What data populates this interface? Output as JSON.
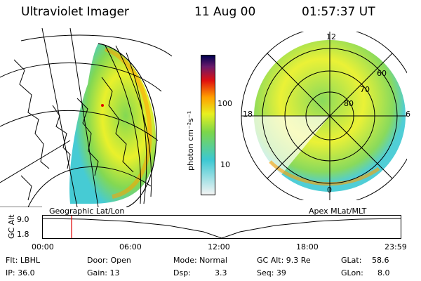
{
  "header": {
    "instrument": "Ultraviolet Imager",
    "date": "11 Aug 00",
    "time": "01:57:37 UT"
  },
  "colorbar": {
    "unit_label": "photon cm⁻²s⁻¹",
    "ticks": [
      "100",
      "10"
    ]
  },
  "geo_panel": {
    "caption": "Geographic Lat/Lon"
  },
  "polar_panel": {
    "caption": "Apex MLat/MLT",
    "mlt_labels": [
      "12",
      "18",
      "6",
      "0"
    ],
    "lat_labels": [
      "60",
      "70",
      "80"
    ]
  },
  "altitude_strip": {
    "axis_label": "GC Alt",
    "y_ticks": [
      "9.0",
      "1.8"
    ],
    "x_ticks": [
      "00:00",
      "06:00",
      "12:00",
      "18:00",
      "23:59"
    ],
    "marker_time": "01:57"
  },
  "status": {
    "row1": [
      "Flt: LBHL",
      "Door: Open",
      "Mode: Normal",
      "GC Alt: 9.3 Re",
      "GLat:",
      "58.6"
    ],
    "row2": [
      "IP: 36.0",
      "Gain: 13",
      "Dsp:",
      "3.3",
      "Seq: 39",
      "GLon:",
      "8.0"
    ]
  },
  "colors": {
    "marker": "#e00000",
    "colorscale": [
      "#f4f4f4",
      "#3cc8d2",
      "#7cd64a",
      "#e8f020",
      "#ffa000",
      "#e01010",
      "#6a1a6a",
      "#000050"
    ]
  }
}
